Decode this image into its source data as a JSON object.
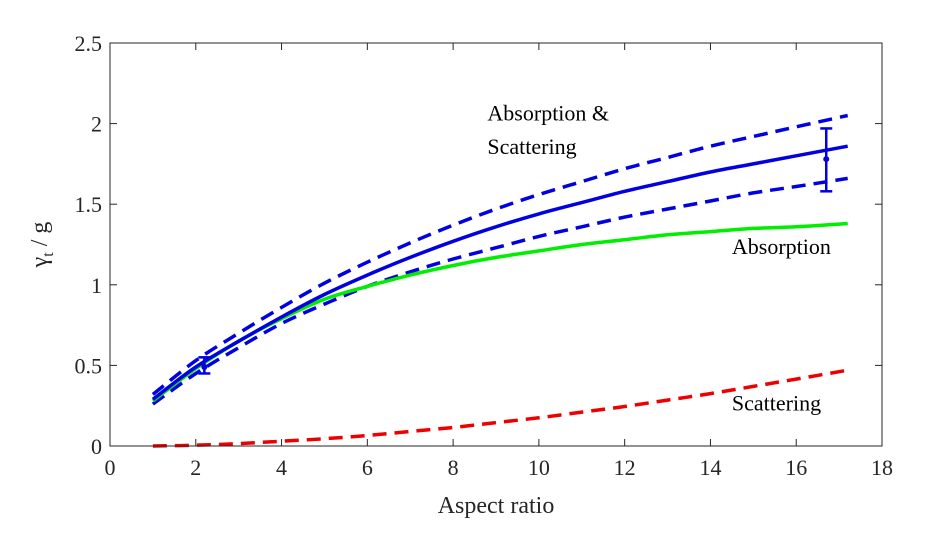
{
  "chart_data": {
    "type": "line",
    "xlabel": "Aspect ratio",
    "ylabel": {
      "main": "γ",
      "sub": "t",
      "rest": " / g"
    },
    "xlim": [
      0,
      18
    ],
    "ylim": [
      0,
      2.5
    ],
    "xticks": [
      0,
      2,
      4,
      6,
      8,
      10,
      12,
      14,
      16,
      18
    ],
    "yticks": [
      0,
      0.5,
      1,
      1.5,
      2,
      2.5
    ],
    "ytick_labels": [
      "0",
      "0.5",
      "1",
      "1.5",
      "2",
      "2.5"
    ],
    "grid": false,
    "x": [
      1,
      2,
      3,
      4,
      5,
      6,
      7,
      8,
      9,
      10,
      11,
      12,
      13,
      14,
      15,
      16,
      17.2
    ],
    "series": [
      {
        "key": "total",
        "color": "#0000e0",
        "dash": "solid",
        "values": [
          0.29,
          0.49,
          0.65,
          0.8,
          0.94,
          1.06,
          1.17,
          1.27,
          1.36,
          1.44,
          1.51,
          1.58,
          1.64,
          1.7,
          1.75,
          1.8,
          1.86
        ]
      },
      {
        "key": "total-upper",
        "color": "#0000e0",
        "dash": "dashed",
        "values": [
          0.32,
          0.53,
          0.7,
          0.86,
          1.01,
          1.14,
          1.26,
          1.37,
          1.47,
          1.56,
          1.64,
          1.72,
          1.79,
          1.86,
          1.92,
          1.98,
          2.05
        ]
      },
      {
        "key": "total-lower",
        "color": "#0000e0",
        "dash": "dashed",
        "values": [
          0.26,
          0.45,
          0.61,
          0.76,
          0.88,
          0.99,
          1.08,
          1.16,
          1.23,
          1.3,
          1.36,
          1.42,
          1.47,
          1.52,
          1.57,
          1.61,
          1.66
        ]
      },
      {
        "key": "absorption",
        "color": "#00ee00",
        "dash": "solid",
        "values": [
          0.28,
          0.48,
          0.65,
          0.79,
          0.91,
          0.99,
          1.06,
          1.12,
          1.17,
          1.21,
          1.25,
          1.28,
          1.31,
          1.33,
          1.35,
          1.36,
          1.38
        ]
      },
      {
        "key": "scattering",
        "color": "#ee0000",
        "dash": "dashed",
        "values": [
          0.0,
          0.005,
          0.015,
          0.03,
          0.045,
          0.065,
          0.09,
          0.115,
          0.145,
          0.175,
          0.21,
          0.245,
          0.285,
          0.325,
          0.37,
          0.415,
          0.47
        ]
      }
    ],
    "error_bars": [
      {
        "x": 2.2,
        "y": 0.49,
        "low": 0.45,
        "high": 0.55
      },
      {
        "x": 16.7,
        "y": 1.78,
        "low": 1.58,
        "high": 1.97
      }
    ],
    "annotations": [
      {
        "key": "abs-scat-1",
        "text": "Absorption &",
        "x": 8.8,
        "y": 2.02
      },
      {
        "key": "abs-scat-2",
        "text": "Scattering",
        "x": 8.8,
        "y": 1.81
      },
      {
        "key": "absorption",
        "text": "Absorption",
        "x": 14.5,
        "y": 1.19
      },
      {
        "key": "scattering",
        "text": "Scattering",
        "x": 14.5,
        "y": 0.22
      }
    ],
    "colors": {
      "axis": "#262626",
      "total": "#0000e0",
      "absorption": "#00ee00",
      "scattering": "#ee0000"
    }
  }
}
